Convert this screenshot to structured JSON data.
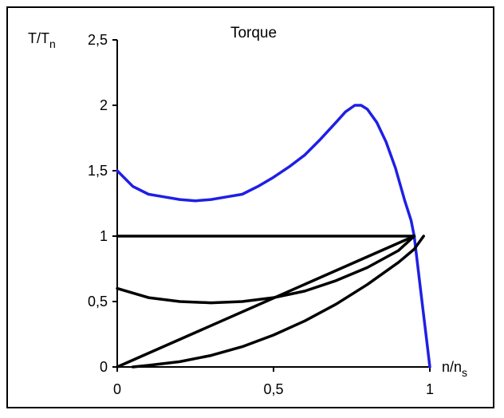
{
  "chart_data": {
    "type": "line",
    "title": "Torque",
    "ylabel": {
      "main": "T/T",
      "sub": "n"
    },
    "xlabel": {
      "main": "n/n",
      "sub": "s"
    },
    "xlim": [
      0,
      1
    ],
    "ylim": [
      0,
      2.5
    ],
    "x_ticks": [
      {
        "value": 0,
        "label": "0"
      },
      {
        "value": 0.5,
        "label": "0,5"
      },
      {
        "value": 1,
        "label": "1"
      }
    ],
    "y_ticks": [
      {
        "value": 0,
        "label": "0"
      },
      {
        "value": 0.5,
        "label": "0,5"
      },
      {
        "value": 1,
        "label": "1"
      },
      {
        "value": 1.5,
        "label": "1,5"
      },
      {
        "value": 2,
        "label": "2"
      },
      {
        "value": 2.5,
        "label": "2,5"
      }
    ],
    "grid": false,
    "series": [
      {
        "color": "#1f1fe6",
        "points": [
          [
            0,
            1.5
          ],
          [
            0.05,
            1.38
          ],
          [
            0.1,
            1.32
          ],
          [
            0.15,
            1.3
          ],
          [
            0.2,
            1.28
          ],
          [
            0.25,
            1.27
          ],
          [
            0.3,
            1.28
          ],
          [
            0.35,
            1.3
          ],
          [
            0.4,
            1.32
          ],
          [
            0.45,
            1.38
          ],
          [
            0.5,
            1.45
          ],
          [
            0.55,
            1.53
          ],
          [
            0.6,
            1.62
          ],
          [
            0.65,
            1.74
          ],
          [
            0.7,
            1.87
          ],
          [
            0.73,
            1.95
          ],
          [
            0.76,
            2.0
          ],
          [
            0.78,
            2.0
          ],
          [
            0.8,
            1.97
          ],
          [
            0.83,
            1.87
          ],
          [
            0.86,
            1.72
          ],
          [
            0.89,
            1.52
          ],
          [
            0.92,
            1.27
          ],
          [
            0.94,
            1.12
          ],
          [
            0.95,
            1.0
          ],
          [
            0.97,
            0.6
          ],
          [
            0.99,
            0.2
          ],
          [
            1.0,
            0
          ]
        ]
      },
      {
        "color": "#000000",
        "points": [
          [
            0,
            1
          ],
          [
            0.95,
            1
          ]
        ]
      },
      {
        "color": "#000000",
        "points": [
          [
            0,
            0.6
          ],
          [
            0.1,
            0.53
          ],
          [
            0.2,
            0.5
          ],
          [
            0.3,
            0.49
          ],
          [
            0.4,
            0.5
          ],
          [
            0.5,
            0.53
          ],
          [
            0.6,
            0.58
          ],
          [
            0.7,
            0.66
          ],
          [
            0.8,
            0.76
          ],
          [
            0.9,
            0.89
          ],
          [
            0.95,
            1.0
          ]
        ]
      },
      {
        "color": "#000000",
        "points": [
          [
            0,
            0
          ],
          [
            0.95,
            1
          ]
        ]
      },
      {
        "color": "#000000",
        "points": [
          [
            0.05,
            0
          ],
          [
            0.1,
            0.012
          ],
          [
            0.2,
            0.04
          ],
          [
            0.3,
            0.088
          ],
          [
            0.4,
            0.155
          ],
          [
            0.5,
            0.244
          ],
          [
            0.6,
            0.352
          ],
          [
            0.7,
            0.48
          ],
          [
            0.8,
            0.63
          ],
          [
            0.9,
            0.8
          ],
          [
            0.95,
            0.9
          ],
          [
            0.98,
            1.0
          ]
        ]
      }
    ]
  }
}
